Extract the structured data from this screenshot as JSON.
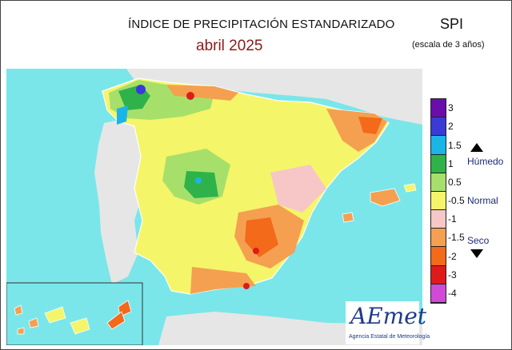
{
  "header": {
    "title": "ÍNDICE DE PRECIPITACIÓN ESTANDARIZADO",
    "period": "abril  2025",
    "index_name": "SPI",
    "scale_note": "(escala de 3 años)"
  },
  "legend": {
    "classes": [
      {
        "color": "#6a0dad",
        "range": "> 3"
      },
      {
        "color": "#3a3ad6",
        "range": "2 to 3"
      },
      {
        "color": "#19b5e6",
        "range": "1.5 to 2"
      },
      {
        "color": "#2fb24a",
        "range": "1 to 1.5"
      },
      {
        "color": "#a6e06a",
        "range": "0.5 to 1"
      },
      {
        "color": "#f5f56a",
        "range": "-0.5 to 0.5"
      },
      {
        "color": "#f7c6c6",
        "range": "-1 to -0.5"
      },
      {
        "color": "#f5a050",
        "range": "-1.5 to -1"
      },
      {
        "color": "#f26a1a",
        "range": "-2 to -1.5"
      },
      {
        "color": "#e01a1a",
        "range": "-3 to -2"
      },
      {
        "color": "#d14ad6",
        "range": "< -3"
      }
    ],
    "ticks": [
      "3",
      "2",
      "1.5",
      "1",
      "0.5",
      "-0.5",
      "-1",
      "-1.5",
      "-2",
      "-3",
      "-4"
    ],
    "humid_label": "Húmedo",
    "normal_label": "Normal",
    "dry_label": "Seco"
  },
  "logo": {
    "name": "AEmet",
    "subtitle": "Agencia Estatal de Meteorología"
  },
  "colors": {
    "sea": "#7ae6ea",
    "land_other": "#e6e6e6",
    "border": "#ffffff"
  }
}
